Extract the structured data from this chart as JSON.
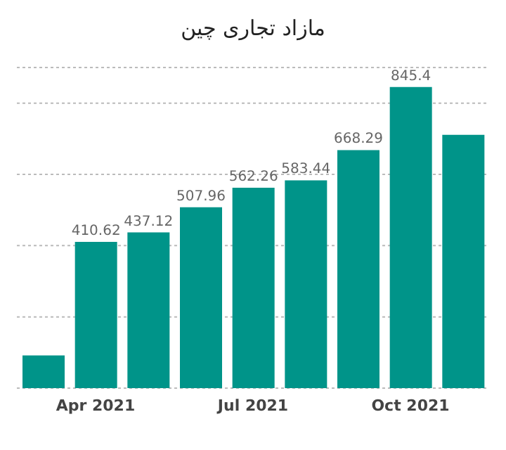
{
  "chart_data": {
    "type": "bar",
    "title": "مازاد تجاری چین",
    "categories": [
      null,
      "Apr 2021",
      null,
      null,
      "Jul 2021",
      null,
      null,
      "Oct 2021",
      null
    ],
    "values": [
      92,
      410.62,
      437.12,
      507.96,
      562.26,
      583.44,
      668.29,
      845.4,
      711
    ],
    "value_labels": [
      null,
      "410.62",
      "437.12",
      "507.96",
      "562.26",
      "583.44",
      "668.29",
      "845.4",
      null
    ],
    "color": "#009489",
    "ylim": [
      0,
      900
    ],
    "yticks": [
      {
        "value": 200,
        "label": null
      },
      {
        "value": 400,
        "label": null
      },
      {
        "value": 600,
        "label": null
      },
      {
        "value": 800,
        "label": null
      }
    ],
    "grid": "y",
    "tick_labels": "x"
  }
}
